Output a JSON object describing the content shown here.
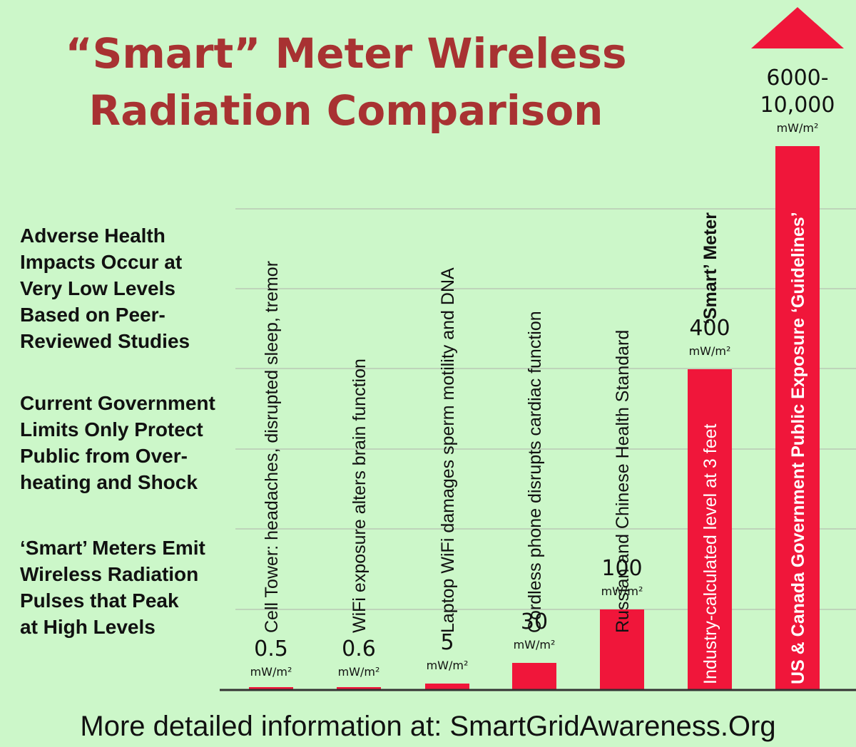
{
  "title_lines": [
    "“Smart” Meter Wireless",
    "Radiation Comparison"
  ],
  "notes": [
    [
      "Adverse Health",
      "Impacts Occur at",
      "Very Low Levels",
      "Based on Peer-",
      "Reviewed Studies"
    ],
    [
      "Current Government",
      "Limits Only Protect",
      "Public from Over-",
      "heating and Shock"
    ],
    [
      "‘Smart’ Meters Emit",
      "Wireless Radiation",
      "Pulses that Peak",
      "at High Levels"
    ]
  ],
  "unit": "mW/m²",
  "bars": [
    {
      "label": "Cell Tower: headaches, disrupted sleep, tremor",
      "value": [
        "0.5"
      ]
    },
    {
      "label": "WiFi exposure alters brain function",
      "value": [
        "0.6"
      ]
    },
    {
      "label": "Laptop WiFi damages sperm motility and DNA",
      "value": [
        "5"
      ]
    },
    {
      "label": "Cordless phone disrupts cardiac function",
      "value": [
        "30"
      ]
    },
    {
      "label": "Russian and Chinese Health Standard",
      "value": [
        "100"
      ]
    },
    {
      "label": "‘Smart’ Meter",
      "inner_label": "Industry-calculated level at 3 feet",
      "value": [
        "400"
      ]
    },
    {
      "inner_label": "US & Canada Government Public Exposure ‘Guidelines’",
      "value": [
        "6000-",
        "10,000"
      ]
    }
  ],
  "footer": "More detailed information at: SmartGridAwareness.Org"
}
